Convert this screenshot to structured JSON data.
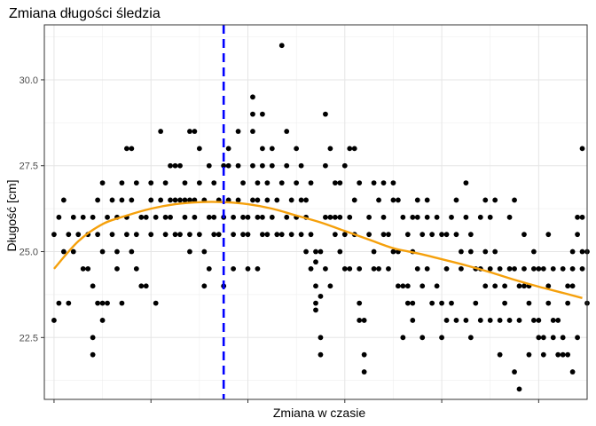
{
  "chart_data": {
    "type": "scatter",
    "title": "Zmiana długości śledzia",
    "xlabel": "Zmiana w czasie",
    "ylabel": "Długość [cm]",
    "x_tick_labels": [
      "",
      "",
      "",
      "",
      "",
      ""
    ],
    "y_ticks": [
      22.5,
      25.0,
      27.5,
      30.0
    ],
    "y_tick_labels": [
      "22.5",
      "25.0",
      "27.5",
      "30.0"
    ],
    "xlim": [
      -2,
      110
    ],
    "ylim": [
      20.7,
      31.6
    ],
    "grid": true,
    "legend": "none",
    "points": [
      [
        0,
        23.0
      ],
      [
        0,
        25.5
      ],
      [
        1,
        23.5
      ],
      [
        1,
        26.0
      ],
      [
        2,
        25.0
      ],
      [
        2,
        26.5
      ],
      [
        3,
        25.5
      ],
      [
        3,
        23.5
      ],
      [
        4,
        26.0
      ],
      [
        4,
        25.0
      ],
      [
        5,
        25.5
      ],
      [
        6,
        26.0
      ],
      [
        6,
        24.5
      ],
      [
        7,
        25.5
      ],
      [
        7,
        24.5
      ],
      [
        8,
        24.0
      ],
      [
        8,
        22.5
      ],
      [
        8,
        22.0
      ],
      [
        8,
        26.0
      ],
      [
        9,
        25.5
      ],
      [
        9,
        23.5
      ],
      [
        9,
        26.5
      ],
      [
        10,
        27.0
      ],
      [
        10,
        23.0
      ],
      [
        10,
        25.0
      ],
      [
        11,
        23.5
      ],
      [
        11,
        26.0
      ],
      [
        12,
        26.5
      ],
      [
        12,
        25.5
      ],
      [
        13,
        25.0
      ],
      [
        13,
        24.5
      ],
      [
        13,
        26.0
      ],
      [
        14,
        26.5
      ],
      [
        14,
        23.5
      ],
      [
        14,
        27.0
      ],
      [
        10,
        23.5
      ],
      [
        15,
        25.5
      ],
      [
        15,
        28.0
      ],
      [
        15,
        26.0
      ],
      [
        16,
        28.0
      ],
      [
        16,
        26.5
      ],
      [
        16,
        25.0
      ],
      [
        17,
        25.5
      ],
      [
        17,
        27.0
      ],
      [
        17,
        24.5
      ],
      [
        18,
        24.0
      ],
      [
        18,
        26.0
      ],
      [
        19,
        26.0
      ],
      [
        19,
        24.0
      ],
      [
        20,
        26.5
      ],
      [
        20,
        25.5
      ],
      [
        20,
        27.0
      ],
      [
        21,
        26.0
      ],
      [
        21,
        23.5
      ],
      [
        22,
        26.5
      ],
      [
        22,
        28.5
      ],
      [
        23,
        26.0
      ],
      [
        23,
        25.5
      ],
      [
        23,
        27.0
      ],
      [
        24,
        27.5
      ],
      [
        24,
        26.5
      ],
      [
        24,
        26.0
      ],
      [
        25,
        25.5
      ],
      [
        25,
        27.5
      ],
      [
        25,
        26.5
      ],
      [
        26,
        27.5
      ],
      [
        26,
        26.5
      ],
      [
        26,
        25.5
      ],
      [
        27,
        26.0
      ],
      [
        27,
        27.0
      ],
      [
        27,
        26.5
      ],
      [
        28,
        25.5
      ],
      [
        28,
        25.0
      ],
      [
        28,
        28.5
      ],
      [
        28,
        26.5
      ],
      [
        29,
        26.0
      ],
      [
        29,
        28.5
      ],
      [
        29,
        26.5
      ],
      [
        30,
        25.5
      ],
      [
        30,
        27.0
      ],
      [
        30,
        28.0
      ],
      [
        31,
        26.5
      ],
      [
        31,
        25.0
      ],
      [
        31,
        24.0
      ],
      [
        32,
        26.0
      ],
      [
        32,
        27.5
      ],
      [
        32,
        24.5
      ],
      [
        33,
        25.5
      ],
      [
        33,
        26.0
      ],
      [
        33,
        27.0
      ],
      [
        34,
        25.5
      ],
      [
        34,
        26.5
      ],
      [
        35,
        26.0
      ],
      [
        35,
        24.0
      ],
      [
        35,
        27.5
      ],
      [
        36,
        27.5
      ],
      [
        36,
        28.0
      ],
      [
        36,
        26.5
      ],
      [
        37,
        25.5
      ],
      [
        37,
        26.0
      ],
      [
        37,
        24.5
      ],
      [
        38,
        26.5
      ],
      [
        38,
        27.5
      ],
      [
        38,
        28.5
      ],
      [
        39,
        25.5
      ],
      [
        39,
        27.0
      ],
      [
        39,
        26.0
      ],
      [
        40,
        25.5
      ],
      [
        40,
        26.0
      ],
      [
        40,
        24.5
      ],
      [
        41,
        26.5
      ],
      [
        41,
        27.5
      ],
      [
        41,
        28.5
      ],
      [
        41,
        29.5
      ],
      [
        41,
        29.0
      ],
      [
        42,
        24.5
      ],
      [
        42,
        26.0
      ],
      [
        42,
        27.0
      ],
      [
        42,
        26.5
      ],
      [
        43,
        25.5
      ],
      [
        43,
        26.0
      ],
      [
        43,
        27.5
      ],
      [
        43,
        29.0
      ],
      [
        43,
        28.0
      ],
      [
        44,
        27.0
      ],
      [
        44,
        25.5
      ],
      [
        44,
        26.5
      ],
      [
        45,
        27.5
      ],
      [
        45,
        28.0
      ],
      [
        45,
        26.0
      ],
      [
        46,
        25.5
      ],
      [
        46,
        26.5
      ],
      [
        47,
        27.0
      ],
      [
        47,
        31.0
      ],
      [
        47,
        25.5
      ],
      [
        48,
        26.0
      ],
      [
        48,
        28.5
      ],
      [
        48,
        27.5
      ],
      [
        49,
        25.5
      ],
      [
        49,
        26.5
      ],
      [
        50,
        27.0
      ],
      [
        50,
        28.0
      ],
      [
        50,
        26.0
      ],
      [
        51,
        25.5
      ],
      [
        51,
        26.5
      ],
      [
        51,
        27.5
      ],
      [
        52,
        25.0
      ],
      [
        52,
        26.0
      ],
      [
        52,
        26.5
      ],
      [
        53,
        25.5
      ],
      [
        53,
        24.5
      ],
      [
        53,
        27.0
      ],
      [
        54,
        24.0
      ],
      [
        54,
        23.5
      ],
      [
        54,
        25.0
      ],
      [
        54,
        24.7
      ],
      [
        54,
        23.3
      ],
      [
        55,
        25.0
      ],
      [
        55,
        22.5
      ],
      [
        55,
        23.7
      ],
      [
        55,
        22.0
      ],
      [
        56,
        24.5
      ],
      [
        56,
        26.0
      ],
      [
        56,
        29.0
      ],
      [
        56,
        27.5
      ],
      [
        57,
        28.0
      ],
      [
        57,
        26.0
      ],
      [
        57,
        24.0
      ],
      [
        58,
        27.0
      ],
      [
        58,
        25.5
      ],
      [
        58,
        26.0
      ],
      [
        59,
        25.0
      ],
      [
        59,
        26.0
      ],
      [
        59,
        27.0
      ],
      [
        60,
        25.5
      ],
      [
        60,
        24.5
      ],
      [
        60,
        27.5
      ],
      [
        61,
        28.0
      ],
      [
        61,
        26.0
      ],
      [
        61,
        24.5
      ],
      [
        62,
        28.0
      ],
      [
        62,
        25.5
      ],
      [
        62,
        26.5
      ],
      [
        63,
        27.0
      ],
      [
        63,
        24.5
      ],
      [
        63,
        23.5
      ],
      [
        63,
        23.0
      ],
      [
        64,
        23.0
      ],
      [
        64,
        22.0
      ],
      [
        64,
        21.5
      ],
      [
        65,
        26.0
      ],
      [
        65,
        25.5
      ],
      [
        66,
        25.0
      ],
      [
        66,
        24.5
      ],
      [
        66,
        27.0
      ],
      [
        67,
        26.5
      ],
      [
        67,
        24.5
      ],
      [
        68,
        25.5
      ],
      [
        68,
        26.0
      ],
      [
        68,
        27.0
      ],
      [
        69,
        24.5
      ],
      [
        69,
        25.5
      ],
      [
        70,
        26.5
      ],
      [
        70,
        27.0
      ],
      [
        70,
        25.0
      ],
      [
        71,
        26.5
      ],
      [
        71,
        24.0
      ],
      [
        71,
        25.0
      ],
      [
        72,
        26.0
      ],
      [
        72,
        24.0
      ],
      [
        72,
        22.5
      ],
      [
        73,
        25.5
      ],
      [
        73,
        23.5
      ],
      [
        73,
        24.0
      ],
      [
        74,
        26.0
      ],
      [
        74,
        25.0
      ],
      [
        74,
        23.5
      ],
      [
        74,
        23.0
      ],
      [
        75,
        26.5
      ],
      [
        75,
        24.5
      ],
      [
        75,
        26.0
      ],
      [
        76,
        25.5
      ],
      [
        76,
        24.0
      ],
      [
        76,
        22.5
      ],
      [
        77,
        26.5
      ],
      [
        77,
        26.0
      ],
      [
        77,
        24.5
      ],
      [
        78,
        25.5
      ],
      [
        78,
        23.5
      ],
      [
        79,
        26.0
      ],
      [
        79,
        24.0
      ],
      [
        80,
        25.5
      ],
      [
        80,
        23.5
      ],
      [
        80,
        22.5
      ],
      [
        81,
        25.5
      ],
      [
        81,
        24.5
      ],
      [
        81,
        23.0
      ],
      [
        82,
        26.0
      ],
      [
        82,
        23.5
      ],
      [
        83,
        25.5
      ],
      [
        83,
        26.5
      ],
      [
        83,
        23.0
      ],
      [
        84,
        25.0
      ],
      [
        84,
        24.5
      ],
      [
        85,
        27.0
      ],
      [
        85,
        26.0
      ],
      [
        85,
        23.0
      ],
      [
        86,
        25.5
      ],
      [
        86,
        25.0
      ],
      [
        86,
        22.5
      ],
      [
        87,
        24.5
      ],
      [
        87,
        23.5
      ],
      [
        88,
        26.0
      ],
      [
        88,
        24.5
      ],
      [
        88,
        23.0
      ],
      [
        89,
        26.5
      ],
      [
        89,
        24.0
      ],
      [
        89,
        25.0
      ],
      [
        90,
        26.0
      ],
      [
        90,
        23.0
      ],
      [
        90,
        24.5
      ],
      [
        91,
        25.0
      ],
      [
        91,
        26.5
      ],
      [
        91,
        24.0
      ],
      [
        92,
        24.5
      ],
      [
        92,
        23.0
      ],
      [
        92,
        22.0
      ],
      [
        93,
        24.0
      ],
      [
        93,
        23.5
      ],
      [
        94,
        26.0
      ],
      [
        94,
        24.5
      ],
      [
        94,
        23.0
      ],
      [
        95,
        26.5
      ],
      [
        95,
        21.5
      ],
      [
        95,
        24.5
      ],
      [
        96,
        24.0
      ],
      [
        96,
        21.0
      ],
      [
        96,
        23.0
      ],
      [
        97,
        25.5
      ],
      [
        97,
        24.5
      ],
      [
        97,
        24.0
      ],
      [
        98,
        24.0
      ],
      [
        98,
        23.5
      ],
      [
        98,
        22.0
      ],
      [
        99,
        25.0
      ],
      [
        99,
        24.5
      ],
      [
        99,
        23.0
      ],
      [
        100,
        24.5
      ],
      [
        100,
        22.5
      ],
      [
        100,
        23.0
      ],
      [
        101,
        22.0
      ],
      [
        101,
        24.5
      ],
      [
        101,
        22.5
      ],
      [
        102,
        25.5
      ],
      [
        102,
        24.0
      ],
      [
        102,
        23.5
      ],
      [
        103,
        23.0
      ],
      [
        103,
        22.5
      ],
      [
        103,
        24.5
      ],
      [
        104,
        22.0
      ],
      [
        104,
        23.0
      ],
      [
        105,
        24.5
      ],
      [
        105,
        22.5
      ],
      [
        105,
        22.0
      ],
      [
        106,
        23.5
      ],
      [
        106,
        24.0
      ],
      [
        106,
        22.0
      ],
      [
        107,
        24.5
      ],
      [
        107,
        25.0
      ],
      [
        107,
        21.5
      ],
      [
        107,
        24.0
      ],
      [
        108,
        26.0
      ],
      [
        108,
        22.5
      ],
      [
        108,
        25.5
      ],
      [
        109,
        28.0
      ],
      [
        109,
        26.0
      ],
      [
        109,
        24.5
      ],
      [
        109,
        25.0
      ],
      [
        110,
        23.5
      ],
      [
        110,
        25.0
      ]
    ],
    "smooth_curve": [
      [
        0,
        24.5
      ],
      [
        5,
        25.3
      ],
      [
        10,
        25.8
      ],
      [
        15,
        26.05
      ],
      [
        20,
        26.25
      ],
      [
        25,
        26.38
      ],
      [
        30,
        26.44
      ],
      [
        35,
        26.44
      ],
      [
        40,
        26.38
      ],
      [
        45,
        26.25
      ],
      [
        50,
        26.05
      ],
      [
        55,
        25.85
      ],
      [
        60,
        25.6
      ],
      [
        65,
        25.35
      ],
      [
        70,
        25.1
      ],
      [
        75,
        24.95
      ],
      [
        80,
        24.78
      ],
      [
        85,
        24.6
      ],
      [
        90,
        24.4
      ],
      [
        95,
        24.18
      ],
      [
        100,
        23.98
      ],
      [
        105,
        23.8
      ],
      [
        109,
        23.65
      ]
    ],
    "vline_x": 35,
    "colors": {
      "points": "#000000",
      "smooth": "#f5a00b",
      "vline": "#0000ff"
    }
  }
}
